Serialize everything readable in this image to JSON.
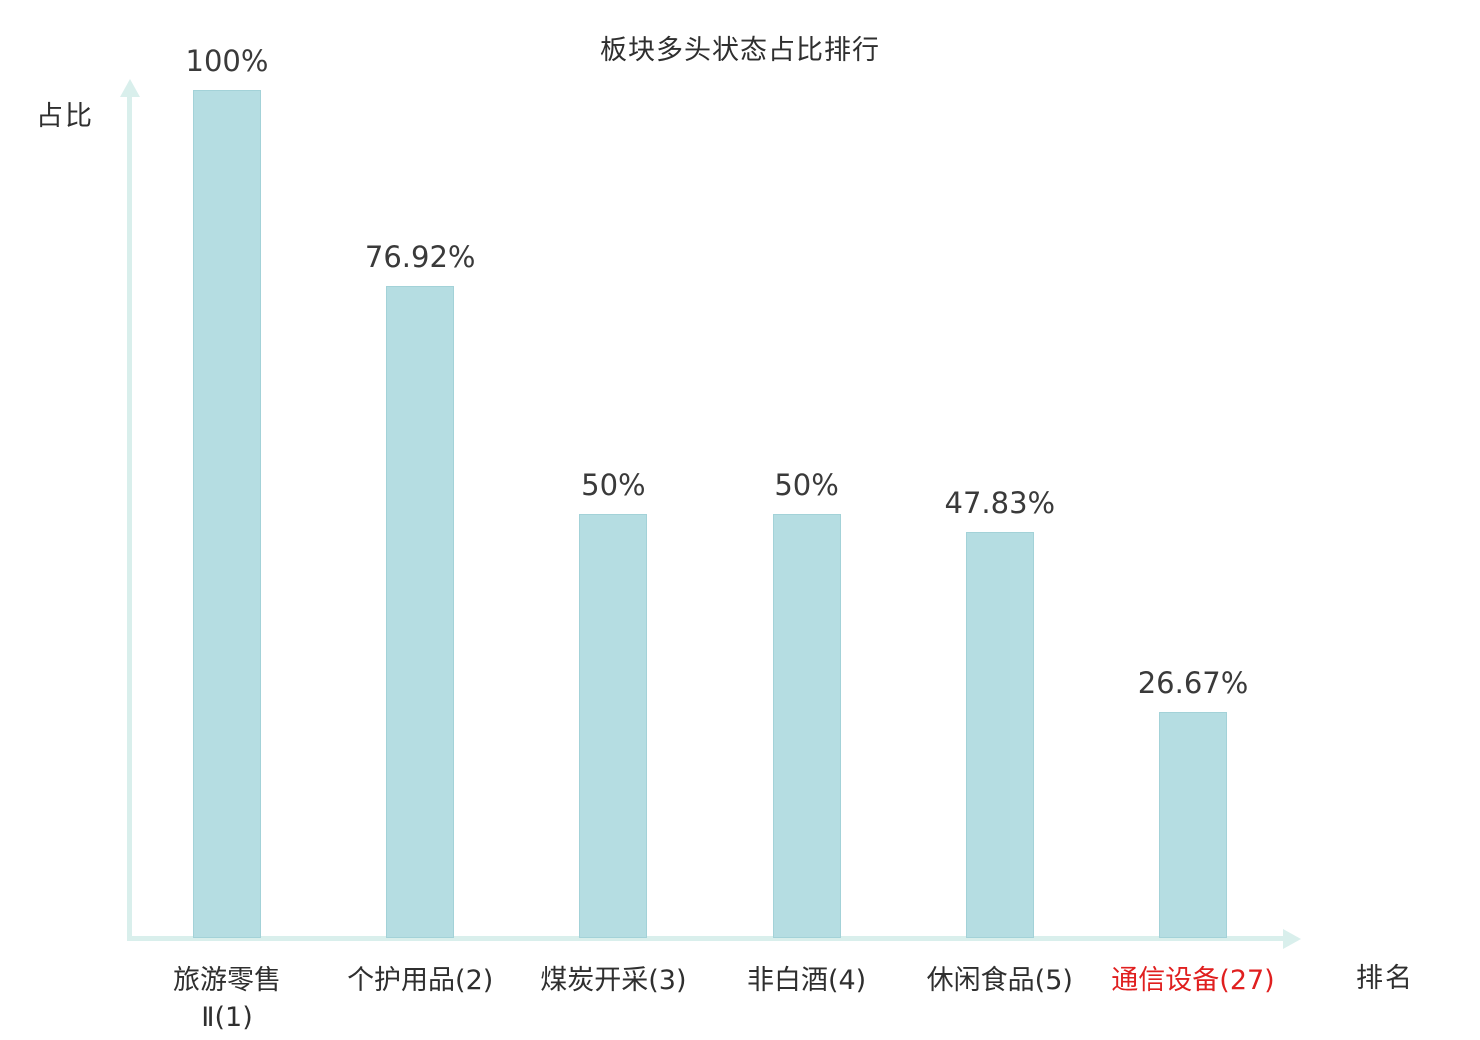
{
  "chart_data": {
    "type": "bar",
    "title": "板块多头状态占比排行",
    "xlabel": "排名",
    "ylabel": "占比",
    "ylim": [
      0,
      100
    ],
    "grid": false,
    "legend": false,
    "categories": [
      "旅游零售\nⅡ(1)",
      "个护用品(2)",
      "煤炭开采(3)",
      "非白酒(4)",
      "休闲食品(5)",
      "通信设备(27)"
    ],
    "values": [
      100,
      76.92,
      50,
      50,
      47.83,
      26.67
    ],
    "value_labels": [
      "100%",
      "76.92%",
      "50%",
      "50%",
      "47.83%",
      "26.67%"
    ],
    "highlighted_category_index": 5,
    "colors": {
      "bar_fill": "#b5dde2",
      "bar_border": "#a3d2d8",
      "axis": "#d9efec",
      "text": "#3a3a3a",
      "highlight_text": "#e01f1f"
    }
  }
}
